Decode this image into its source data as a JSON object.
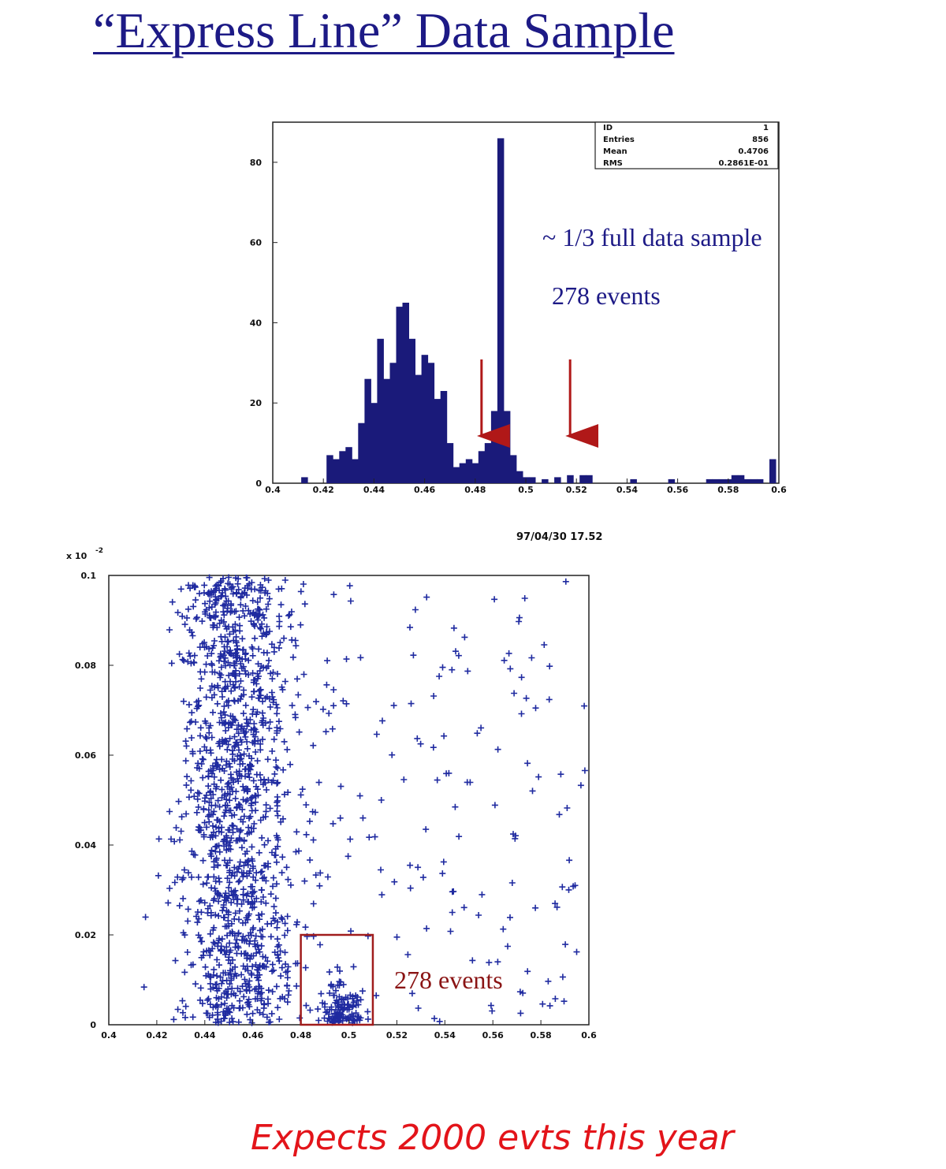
{
  "title": "“Express Line” Data Sample",
  "timestamp": "97/04/30  17.52",
  "handwritten_note": "Expects 2000 evts this year",
  "colors": {
    "title": "#1d1a86",
    "bars": "#1a1a7a",
    "markers": "#1f2aa0",
    "arrows": "#b01818",
    "box": "#a01c1c",
    "handwriting": "#e3141a"
  },
  "chart_data": [
    {
      "type": "bar",
      "xlim": [
        0.4,
        0.6
      ],
      "ylim": [
        0,
        90
      ],
      "xticks": [
        "0.4",
        "0.42",
        "0.44",
        "0.46",
        "0.48",
        "0.5",
        "0.52",
        "0.54",
        "0.56",
        "0.58",
        "0.6"
      ],
      "yticks": [
        "0",
        "20",
        "40",
        "60",
        "80"
      ],
      "x": [
        0.4125,
        0.4225,
        0.425,
        0.4275,
        0.43,
        0.4325,
        0.435,
        0.4375,
        0.44,
        0.4425,
        0.445,
        0.4475,
        0.45,
        0.4525,
        0.455,
        0.4575,
        0.46,
        0.4625,
        0.465,
        0.4675,
        0.47,
        0.4725,
        0.475,
        0.4775,
        0.48,
        0.4825,
        0.485,
        0.4875,
        0.49,
        0.4925,
        0.495,
        0.4975,
        0.5,
        0.5025,
        0.5075,
        0.5125,
        0.5175,
        0.5225,
        0.525,
        0.5425,
        0.5575,
        0.5725,
        0.575,
        0.5775,
        0.58,
        0.5825,
        0.585,
        0.5875,
        0.59,
        0.5925,
        0.5975
      ],
      "values": [
        1.5,
        7,
        6,
        8,
        9,
        6,
        15,
        26,
        20,
        36,
        26,
        30,
        44,
        45,
        36,
        27,
        32,
        30,
        21,
        23,
        10,
        4,
        5,
        6,
        5,
        8,
        10,
        18,
        86,
        18,
        7,
        3,
        1.5,
        1.5,
        1,
        1.5,
        2,
        2,
        2,
        1,
        1,
        1,
        1,
        1,
        1,
        2,
        2,
        1,
        1,
        1,
        6
      ],
      "stats": {
        "ID": "1",
        "Entries": "856",
        "Mean": "0.4706",
        "RMS": "0.2861E-01"
      },
      "annotations": [
        "~ 1/3 full data sample",
        "278 events"
      ],
      "arrows_x": [
        0.4825,
        0.5175
      ]
    },
    {
      "type": "scatter",
      "xlim": [
        0.4,
        0.6
      ],
      "ylim": [
        0,
        0.1
      ],
      "y_exponent": "x 10",
      "y_exponent_power": "-2",
      "xticks": [
        "0.4",
        "0.42",
        "0.44",
        "0.46",
        "0.48",
        "0.5",
        "0.52",
        "0.54",
        "0.56",
        "0.58",
        "0.6"
      ],
      "yticks": [
        "0",
        "0.02",
        "0.04",
        "0.06",
        "0.08",
        "0.1"
      ],
      "cut_box": {
        "x": [
          0.48,
          0.51
        ],
        "y": [
          0,
          0.02
        ]
      },
      "annotation": "278 events"
    }
  ]
}
